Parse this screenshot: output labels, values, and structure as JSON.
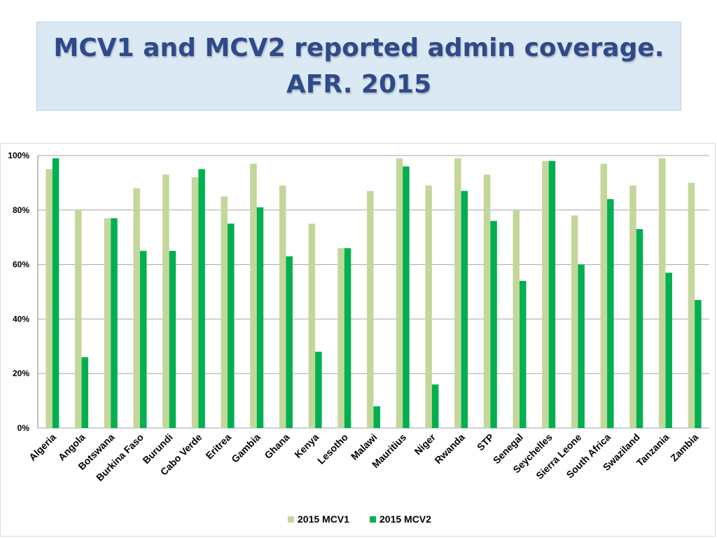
{
  "title": {
    "line1": "MCV1 and MCV2 reported admin coverage.",
    "line2": "AFR. 2015"
  },
  "colors": {
    "mcv1": "#c4d79b",
    "mcv2": "#00b050",
    "title_text": "#2f4a8a",
    "title_bg": "#dbe9f4",
    "gridline": "#a6a6a6"
  },
  "chart_data": {
    "type": "bar",
    "title": "MCV1 and MCV2 reported admin coverage. AFR. 2015",
    "xlabel": "",
    "ylabel": "",
    "ylim": [
      0,
      100
    ],
    "yticks": [
      0,
      20,
      40,
      60,
      80,
      100
    ],
    "ytick_labels": [
      "0%",
      "20%",
      "40%",
      "60%",
      "80%",
      "100%"
    ],
    "grid": true,
    "legend_position": "bottom",
    "categories": [
      "Algeria",
      "Angola",
      "Botswana",
      "Burkina Faso",
      "Burundi",
      "Cabo Verde",
      "Eritrea",
      "Gambia",
      "Ghana",
      "Kenya",
      "Lesotho",
      "Malawi",
      "Mauritius",
      "Niger",
      "Rwanda",
      "STP",
      "Senegal",
      "Seychelles",
      "Sierra Leone",
      "South Africa",
      "Swaziland",
      "Tanzania",
      "Zambia"
    ],
    "series": [
      {
        "name": "2015 MCV1",
        "values": [
          95,
          80,
          77,
          88,
          93,
          92,
          85,
          97,
          89,
          75,
          66,
          87,
          99,
          89,
          99,
          93,
          80,
          98,
          78,
          97,
          89,
          99,
          90
        ]
      },
      {
        "name": "2015 MCV2",
        "values": [
          99,
          26,
          77,
          65,
          65,
          95,
          75,
          81,
          63,
          28,
          66,
          8,
          96,
          16,
          87,
          76,
          54,
          98,
          60,
          84,
          73,
          57,
          47
        ]
      }
    ]
  }
}
